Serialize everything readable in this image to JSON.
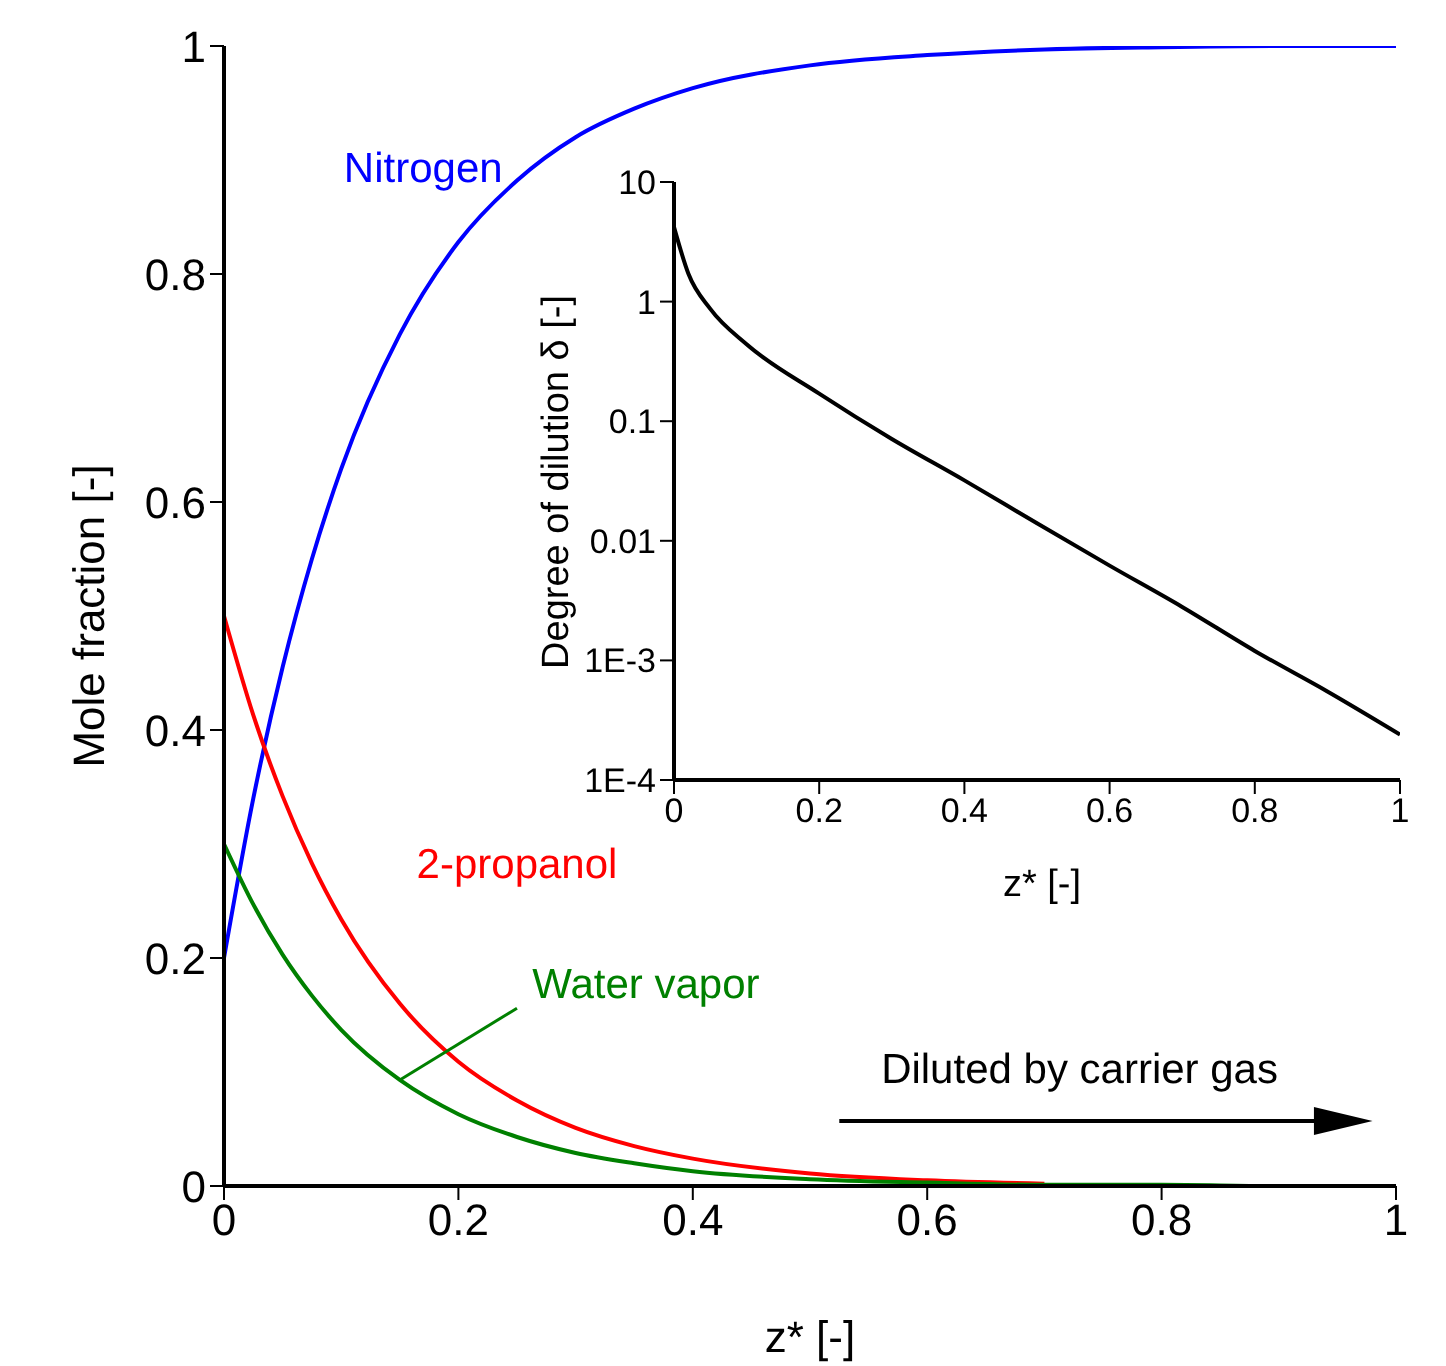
{
  "chart_data": [
    {
      "type": "line",
      "xlabel": "z*  [-]",
      "ylabel": "Mole fraction  [-]",
      "x": [
        0,
        0.025,
        0.05,
        0.075,
        0.1,
        0.15,
        0.2,
        0.25,
        0.3,
        0.35,
        0.4,
        0.5,
        0.6,
        0.7,
        0.8,
        0.9,
        1
      ],
      "series": [
        {
          "name": "Nitrogen",
          "color": "#0000ff",
          "values": [
            0.2,
            0.34,
            0.455,
            0.55,
            0.629,
            0.747,
            0.828,
            0.882,
            0.92,
            0.945,
            0.963,
            0.983,
            0.992,
            0.997,
            0.999,
            1,
            1
          ]
        },
        {
          "name": "2-propanol",
          "color": "#ff0000",
          "values": [
            0.5,
            0.413,
            0.342,
            0.283,
            0.234,
            0.16,
            0.109,
            0.075,
            0.051,
            0.035,
            0.024,
            0.011,
            0.005,
            0.002,
            null,
            null,
            null
          ]
        },
        {
          "name": "Water vapor",
          "color": "#008000",
          "values": [
            0.3,
            0.247,
            0.203,
            0.167,
            0.137,
            0.093,
            0.063,
            0.043,
            0.029,
            0.02,
            0.013,
            0.006,
            0.003,
            0.001,
            0.001,
            0,
            0
          ]
        }
      ],
      "xlim": [
        0,
        1
      ],
      "xticks": [
        0,
        0.2,
        0.4,
        0.6,
        0.8,
        1
      ],
      "ylim": [
        0,
        1
      ],
      "yticks": [
        0,
        0.2,
        0.4,
        0.6,
        0.8,
        1
      ],
      "annotations": [
        "Diluted by carrier gas"
      ],
      "grid": false,
      "legend": false
    },
    {
      "type": "line",
      "xlabel": "z* [-]",
      "ylabel": "Degree of dilution δ [-]",
      "log": "y",
      "x": [
        0,
        0.02,
        0.05,
        0.1,
        0.2,
        0.3,
        0.4,
        0.5,
        0.6,
        0.7,
        0.8,
        0.9,
        1
      ],
      "series": [
        {
          "color": "#000000",
          "values": [
            4.2,
            1.7,
            0.87,
            0.44,
            0.17,
            0.071,
            0.032,
            0.014,
            0.0062,
            0.0028,
            0.0012,
            0.00055,
            0.00024
          ]
        }
      ],
      "xlim": [
        0,
        1
      ],
      "xticks": [
        0,
        0.2,
        0.4,
        0.6,
        0.8,
        1
      ],
      "ylim": [
        0.0001,
        10
      ],
      "yticks": [
        10,
        1,
        0.1,
        0.01,
        {
          "value": 0.001,
          "label": "1E-3"
        },
        {
          "value": 0.0001,
          "label": "1E-4"
        }
      ],
      "grid": false,
      "legend": false
    }
  ]
}
